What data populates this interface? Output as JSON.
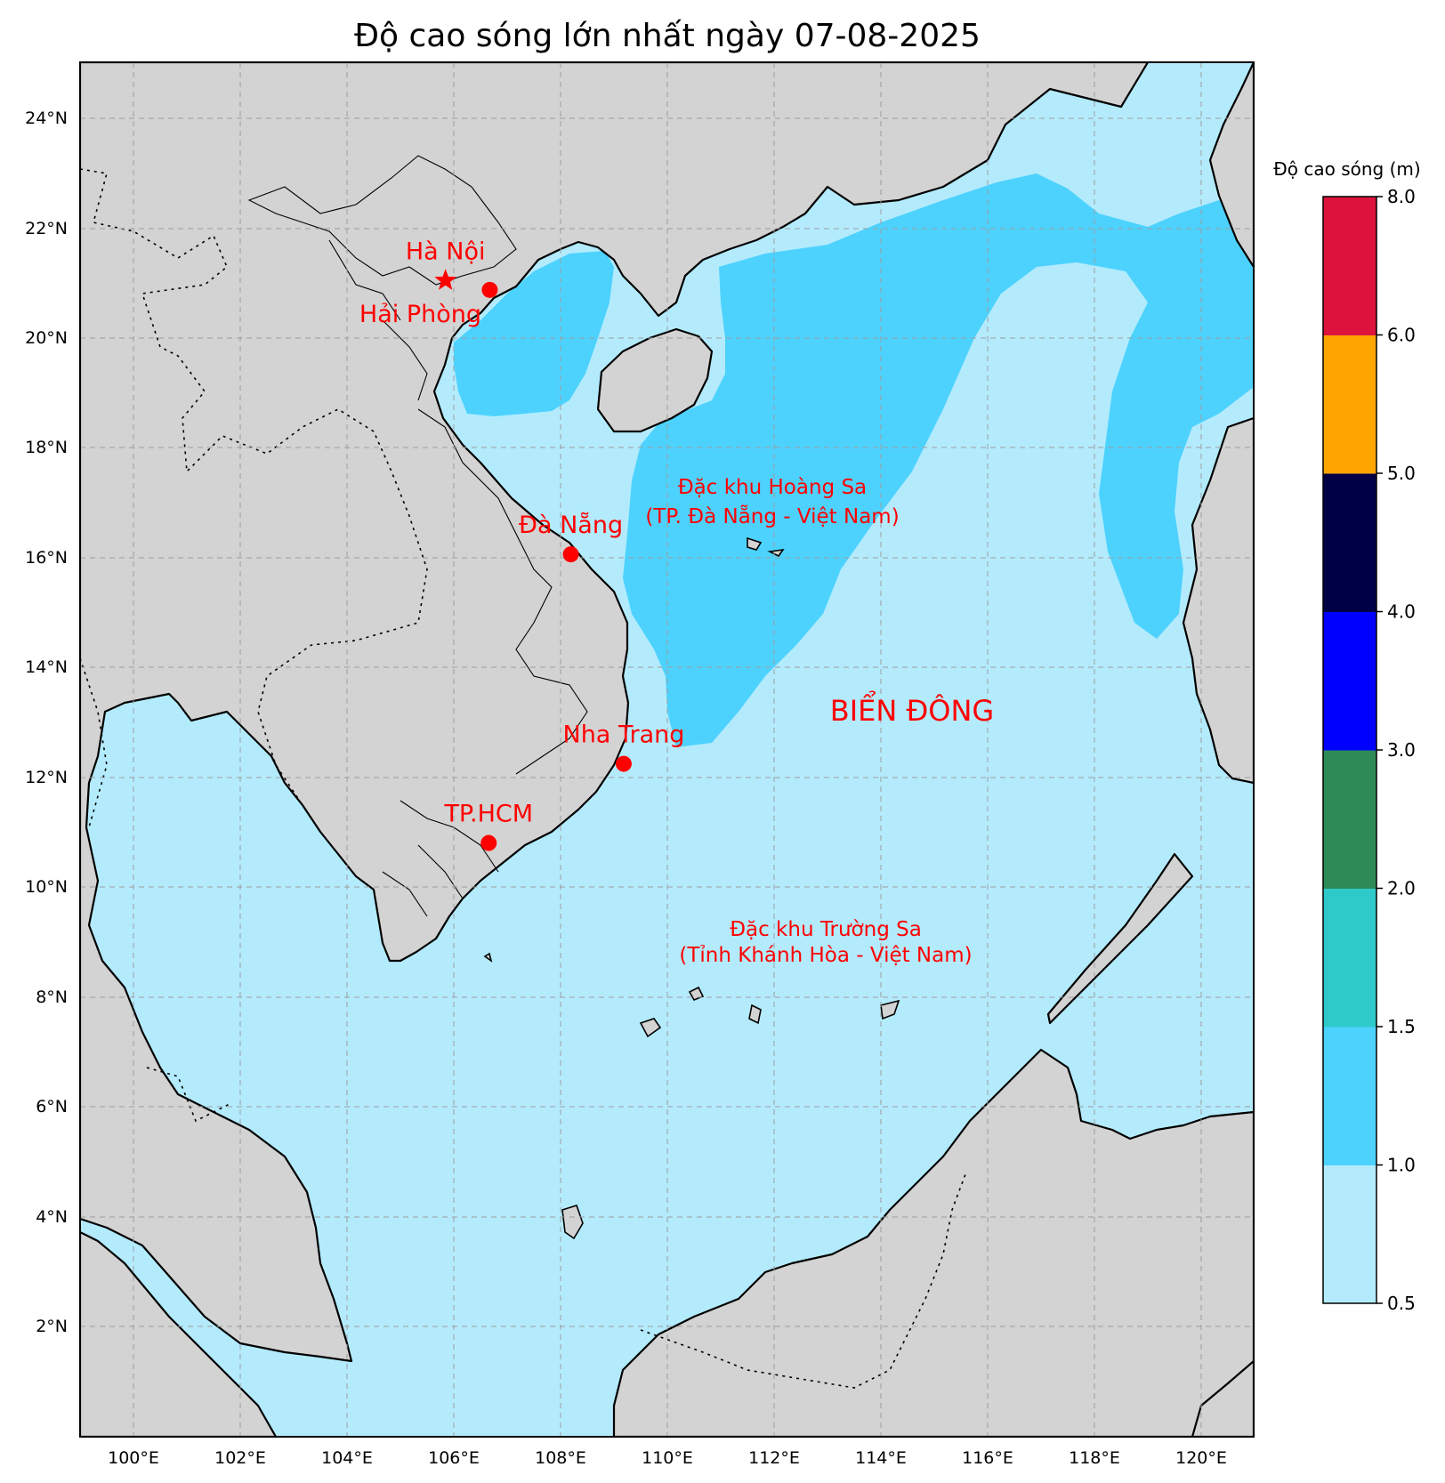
{
  "title": "Độ cao sóng lớn nhất ngày 07-08-2025",
  "colors": {
    "land": "#d3d3d3",
    "sea_0_5_1_0": "#b3ebfd",
    "sea_1_0_1_5": "#4dd2fe",
    "coastline": "#000000",
    "marker": "#ff0000",
    "label": "#ff0000"
  },
  "axes": {
    "lon_ticks": [
      "100°E",
      "102°E",
      "104°E",
      "106°E",
      "108°E",
      "110°E",
      "112°E",
      "114°E",
      "116°E",
      "118°E",
      "120°E"
    ],
    "lat_ticks": [
      "24°N",
      "22°N",
      "20°N",
      "18°N",
      "16°N",
      "14°N",
      "12°N",
      "10°N",
      "8°N",
      "6°N",
      "4°N",
      "2°N"
    ],
    "lon_range": [
      99,
      121
    ],
    "lat_range": [
      0,
      25
    ]
  },
  "cities": [
    {
      "name": "Hà Nội",
      "marker": "star",
      "lon": 105.85,
      "lat": 21.03
    },
    {
      "name": "Hải Phòng",
      "marker": "circle",
      "lon": 106.68,
      "lat": 20.86
    },
    {
      "name": "Đà Nẵng",
      "marker": "circle",
      "lon": 108.2,
      "lat": 16.05
    },
    {
      "name": "Nha Trang",
      "marker": "circle",
      "lon": 109.19,
      "lat": 12.24
    },
    {
      "name": "TP.HCM",
      "marker": "circle",
      "lon": 106.66,
      "lat": 10.8
    }
  ],
  "annotations": {
    "hoang_sa_line1": "Đặc khu Hoàng Sa",
    "hoang_sa_line2": "(TP. Đà Nẵng - Việt Nam)",
    "truong_sa_line1": "Đặc khu Trường Sa",
    "truong_sa_line2": "(Tỉnh Khánh Hòa - Việt Nam)",
    "sea_name": "BIỂN ĐÔNG"
  },
  "colorbar": {
    "title": "Độ cao sóng (m)",
    "bins": [
      {
        "from": 0.5,
        "to": 1.0,
        "color": "#b3ebfd"
      },
      {
        "from": 1.0,
        "to": 1.5,
        "color": "#4dd2fe"
      },
      {
        "from": 1.5,
        "to": 2.0,
        "color": "#2ec9c9"
      },
      {
        "from": 2.0,
        "to": 3.0,
        "color": "#2e8b57"
      },
      {
        "from": 3.0,
        "to": 4.0,
        "color": "#0000ff"
      },
      {
        "from": 4.0,
        "to": 5.0,
        "color": "#000047"
      },
      {
        "from": 5.0,
        "to": 6.0,
        "color": "#ffa500"
      },
      {
        "from": 6.0,
        "to": 8.0,
        "color": "#dc143c"
      }
    ],
    "tick_labels": [
      "0.5",
      "1.0",
      "1.5",
      "2.0",
      "3.0",
      "4.0",
      "5.0",
      "6.0",
      "8.0"
    ]
  }
}
